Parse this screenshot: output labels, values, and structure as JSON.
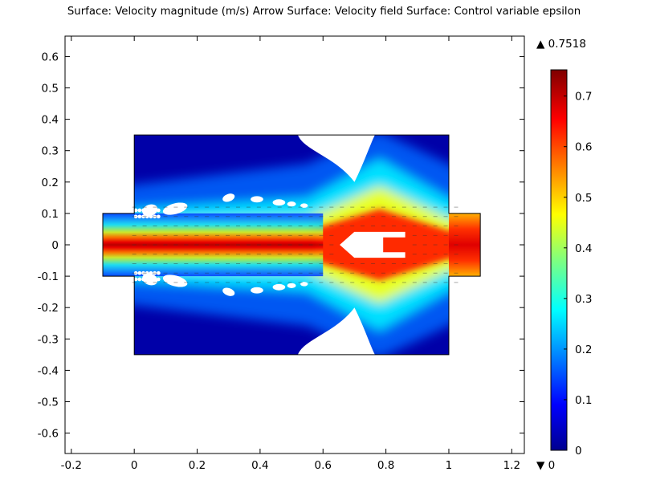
{
  "chart_data": {
    "type": "heatmap",
    "title": "Surface: Velocity magnitude (m/s)  Arrow Surface: Velocity field  Surface: Control variable epsilon",
    "xlim": [
      -0.22,
      1.24
    ],
    "ylim": [
      -0.665,
      0.665
    ],
    "x_ticks": [
      -0.2,
      0,
      0.2,
      0.4,
      0.6,
      0.8,
      1,
      1.2
    ],
    "x_tick_labels": [
      "-0.2",
      "0",
      "0.2",
      "0.4",
      "0.6",
      "0.8",
      "1",
      "1.2"
    ],
    "y_ticks": [
      0.6,
      0.5,
      0.4,
      0.3,
      0.2,
      0.1,
      0,
      -0.1,
      -0.2,
      -0.3,
      -0.4,
      -0.5,
      -0.6
    ],
    "y_tick_labels": [
      "0.6",
      "0.5",
      "0.4",
      "0.3",
      "0.2",
      "0.1",
      "0",
      "-0.1",
      "-0.2",
      "-0.3",
      "-0.4",
      "-0.5",
      "-0.6"
    ],
    "colorbar": {
      "colormap": "rainbow",
      "min": 0,
      "max": 0.7518,
      "max_label": "▲ 0.7518",
      "min_label": "▼ 0",
      "ticks": [
        0,
        0.1,
        0.2,
        0.3,
        0.4,
        0.5,
        0.6,
        0.7
      ],
      "tick_labels": [
        "0",
        "0.1",
        "0.2",
        "0.3",
        "0.4",
        "0.5",
        "0.6",
        "0.7"
      ]
    },
    "domain": {
      "main_chamber": {
        "x": [
          0,
          1
        ],
        "y": [
          -0.35,
          0.35
        ]
      },
      "inlet_channel": {
        "x": [
          -0.1,
          0
        ],
        "y": [
          -0.1,
          0.1
        ]
      },
      "outlet_channel": {
        "x": [
          1,
          1.1
        ],
        "y": [
          -0.1,
          0.1
        ]
      }
    },
    "jet": {
      "peak_velocity": 0.7518,
      "jet_half_width": 0.1,
      "split_x": 0.66,
      "rejoin_x": 1.0
    },
    "obstacle": {
      "description": "arrow-shaped obstacle with forked tail",
      "tip_x": 0.655,
      "tail_x": 0.87,
      "half_height": 0.04
    }
  }
}
